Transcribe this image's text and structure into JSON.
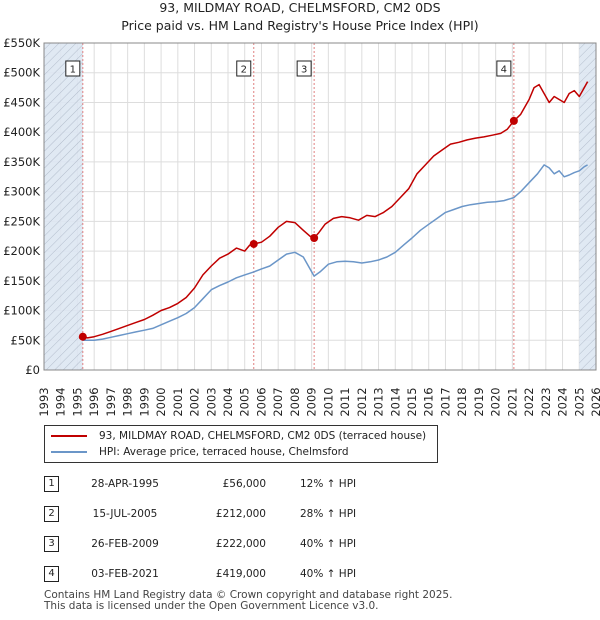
{
  "header": {
    "title": "93, MILDMAY ROAD, CHELMSFORD, CM2 0DS",
    "subtitle": "Price paid vs. HM Land Registry's House Price Index (HPI)"
  },
  "colors": {
    "price_line": "#c00000",
    "hpi_line": "#6b96c8",
    "sale_marker": "#c00000",
    "shade": "#dde6f2",
    "grid": "#dddddd",
    "vline": "#e08080"
  },
  "chart_data": {
    "type": "line",
    "title": "93, MILDMAY ROAD, CHELMSFORD, CM2 0DS",
    "subtitle": "Price paid vs. HM Land Registry's House Price Index (HPI)",
    "xlim": [
      1993,
      2026
    ],
    "ylim": [
      0,
      550000
    ],
    "y_ticks": [
      0,
      50000,
      100000,
      150000,
      200000,
      250000,
      300000,
      350000,
      400000,
      450000,
      500000,
      550000
    ],
    "y_tick_labels": [
      "£0",
      "£50K",
      "£100K",
      "£150K",
      "£200K",
      "£250K",
      "£300K",
      "£350K",
      "£400K",
      "£450K",
      "£500K",
      "£550K"
    ],
    "x_ticks": [
      1993,
      1994,
      1995,
      1996,
      1997,
      1998,
      1999,
      2000,
      2001,
      2002,
      2003,
      2004,
      2005,
      2006,
      2007,
      2008,
      2009,
      2010,
      2011,
      2012,
      2013,
      2014,
      2015,
      2016,
      2017,
      2018,
      2019,
      2020,
      2021,
      2022,
      2023,
      2024,
      2025,
      2026
    ],
    "x_tick_labels": [
      "1993",
      "1994",
      "1995",
      "1996",
      "1997",
      "1998",
      "1999",
      "2000",
      "2001",
      "2002",
      "2003",
      "2004",
      "2005",
      "2006",
      "2007",
      "2008",
      "2009",
      "2010",
      "2011",
      "2012",
      "2013",
      "2014",
      "2015",
      "2016",
      "2017",
      "2018",
      "2019",
      "2020",
      "2021",
      "2022",
      "2023",
      "2024",
      "2025",
      "2026"
    ],
    "shaded_ranges": [
      [
        1993,
        1995.32
      ],
      [
        2025.0,
        2026
      ]
    ],
    "series": [
      {
        "name": "93, MILDMAY ROAD, CHELMSFORD, CM2 0DS (terraced house)",
        "color": "#c00000",
        "x": [
          1995.32,
          1995.6,
          1996,
          1996.5,
          1997,
          1997.5,
          1998,
          1998.5,
          1999,
          1999.5,
          2000,
          2000.5,
          2001,
          2001.5,
          2002,
          2002.5,
          2003,
          2003.5,
          2004,
          2004.5,
          2005,
          2005.3,
          2005.54,
          2006,
          2006.5,
          2007,
          2007.5,
          2008,
          2008.5,
          2008.9,
          2009.15,
          2009.4,
          2009.8,
          2010.3,
          2010.8,
          2011.3,
          2011.8,
          2012.3,
          2012.8,
          2013.3,
          2013.8,
          2014.3,
          2014.8,
          2015.3,
          2015.8,
          2016.3,
          2016.8,
          2017.3,
          2017.8,
          2018.3,
          2018.8,
          2019.3,
          2019.8,
          2020.3,
          2020.7,
          2021.09,
          2021.5,
          2022,
          2022.3,
          2022.6,
          2022.9,
          2023.2,
          2023.5,
          2023.8,
          2024.1,
          2024.4,
          2024.7,
          2025.0,
          2025.3,
          2025.5
        ],
        "values": [
          56000,
          54000,
          56000,
          60000,
          65000,
          70000,
          75000,
          80000,
          85000,
          92000,
          100000,
          105000,
          112000,
          122000,
          138000,
          160000,
          175000,
          188000,
          195000,
          205000,
          200000,
          210000,
          212000,
          215000,
          225000,
          240000,
          250000,
          248000,
          235000,
          225000,
          222000,
          230000,
          245000,
          255000,
          258000,
          256000,
          252000,
          260000,
          258000,
          265000,
          275000,
          290000,
          305000,
          330000,
          345000,
          360000,
          370000,
          380000,
          383000,
          387000,
          390000,
          392000,
          395000,
          398000,
          405000,
          419000,
          430000,
          455000,
          475000,
          480000,
          465000,
          450000,
          460000,
          455000,
          450000,
          465000,
          470000,
          460000,
          475000,
          485000
        ]
      },
      {
        "name": "HPI: Average price, terraced house, Chelmsford",
        "color": "#6b96c8",
        "x": [
          1995.32,
          1996,
          1996.5,
          1997,
          1997.5,
          1998,
          1998.5,
          1999,
          1999.5,
          2000,
          2000.5,
          2001,
          2001.5,
          2002,
          2002.5,
          2003,
          2003.5,
          2004,
          2004.5,
          2005,
          2005.54,
          2006,
          2006.5,
          2007,
          2007.5,
          2008,
          2008.5,
          2008.9,
          2009.15,
          2009.5,
          2010,
          2010.5,
          2011,
          2011.5,
          2012,
          2012.5,
          2013,
          2013.5,
          2014,
          2014.5,
          2015,
          2015.5,
          2016,
          2016.5,
          2017,
          2017.5,
          2018,
          2018.5,
          2019,
          2019.5,
          2020,
          2020.5,
          2021.09,
          2021.5,
          2022,
          2022.5,
          2022.9,
          2023.2,
          2023.5,
          2023.8,
          2024.1,
          2024.4,
          2024.7,
          2025.0,
          2025.3,
          2025.5
        ],
        "values": [
          50000,
          50000,
          52000,
          55000,
          58000,
          61000,
          64000,
          67000,
          70000,
          76000,
          82000,
          88000,
          95000,
          105000,
          120000,
          135000,
          142000,
          148000,
          155000,
          160000,
          165000,
          170000,
          175000,
          185000,
          195000,
          198000,
          190000,
          170000,
          158000,
          165000,
          178000,
          182000,
          183000,
          182000,
          180000,
          182000,
          185000,
          190000,
          198000,
          210000,
          222000,
          235000,
          245000,
          255000,
          265000,
          270000,
          275000,
          278000,
          280000,
          282000,
          283000,
          285000,
          290000,
          300000,
          315000,
          330000,
          345000,
          340000,
          330000,
          335000,
          325000,
          328000,
          332000,
          335000,
          342000,
          345000
        ]
      }
    ],
    "sales": [
      {
        "label": "1",
        "x": 1995.32,
        "price": 56000
      },
      {
        "label": "2",
        "x": 2005.54,
        "price": 212000
      },
      {
        "label": "3",
        "x": 2009.15,
        "price": 222000
      },
      {
        "label": "4",
        "x": 2021.09,
        "price": 419000
      }
    ]
  },
  "legend": {
    "price_label": "93, MILDMAY ROAD, CHELMSFORD, CM2 0DS (terraced house)",
    "hpi_label": "HPI: Average price, terraced house, Chelmsford"
  },
  "sales_table": [
    {
      "num": "1",
      "date": "28-APR-1995",
      "price": "£56,000",
      "hpi": "12% ↑ HPI"
    },
    {
      "num": "2",
      "date": "15-JUL-2005",
      "price": "£212,000",
      "hpi": "28% ↑ HPI"
    },
    {
      "num": "3",
      "date": "26-FEB-2009",
      "price": "£222,000",
      "hpi": "40% ↑ HPI"
    },
    {
      "num": "4",
      "date": "03-FEB-2021",
      "price": "£419,000",
      "hpi": "40% ↑ HPI"
    }
  ],
  "footer": {
    "line1": "Contains HM Land Registry data © Crown copyright and database right 2025.",
    "line2": "This data is licensed under the Open Government Licence v3.0."
  }
}
